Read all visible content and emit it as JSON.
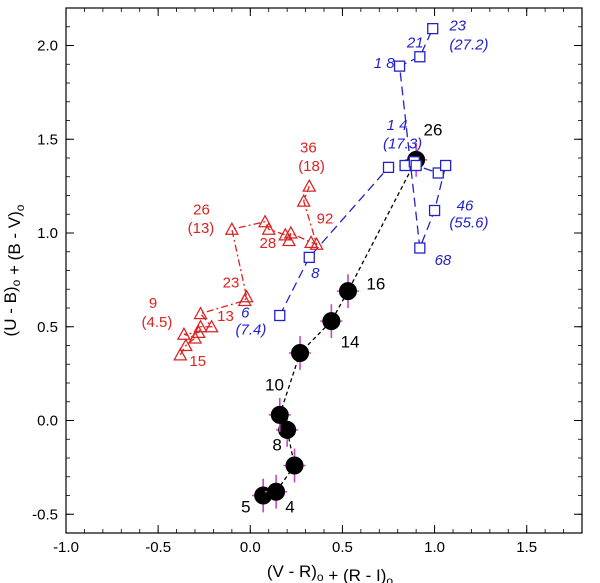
{
  "chart_data": {
    "type": "scatter",
    "xlabel": "(V - R)o + (R - I)o",
    "ylabel": "(U - B)o + (B - V)o",
    "xlim": [
      -1.0,
      1.8
    ],
    "ylim": [
      -0.6,
      2.2
    ],
    "xticks": [
      -1.0,
      -0.5,
      0.0,
      0.5,
      1.0,
      1.5
    ],
    "xtick_labels": [
      "-1.0",
      "-0.5",
      "0.0",
      "0.5",
      "1.0",
      "1.5"
    ],
    "yticks": [
      -0.5,
      0.0,
      0.5,
      1.0,
      1.5,
      2.0
    ],
    "ytick_labels": [
      "-0.5",
      "0.0",
      "0.5",
      "1.0",
      "1.5",
      "2.0"
    ],
    "grid": false,
    "series": [
      {
        "name": "black-circles",
        "marker": "filled-circle",
        "color": "#000000",
        "errorbar_color": "#cc44cc",
        "line": "dashed",
        "points": [
          {
            "x": 0.07,
            "y": -0.4
          },
          {
            "x": 0.14,
            "y": -0.38
          },
          {
            "x": 0.24,
            "y": -0.24
          },
          {
            "x": 0.2,
            "y": -0.05
          },
          {
            "x": 0.16,
            "y": 0.03
          },
          {
            "x": 0.27,
            "y": 0.36
          },
          {
            "x": 0.44,
            "y": 0.53
          },
          {
            "x": 0.53,
            "y": 0.69
          },
          {
            "x": 0.9,
            "y": 1.39
          }
        ],
        "labels": [
          {
            "text": "5",
            "x": -0.05,
            "y": -0.49
          },
          {
            "text": "4",
            "x": 0.19,
            "y": -0.49
          },
          {
            "text": "8",
            "x": 0.12,
            "y": -0.16
          },
          {
            "text": "10",
            "x": 0.08,
            "y": 0.16
          },
          {
            "text": "14",
            "x": 0.49,
            "y": 0.39
          },
          {
            "text": "16",
            "x": 0.63,
            "y": 0.7
          },
          {
            "text": "26",
            "x": 0.94,
            "y": 1.52
          }
        ]
      },
      {
        "name": "blue-squares",
        "marker": "open-square",
        "color": "#2222cc",
        "line": "long-dash",
        "points": [
          {
            "x": 0.16,
            "y": 0.56
          },
          {
            "x": 0.32,
            "y": 0.87
          },
          {
            "x": 0.75,
            "y": 1.35
          },
          {
            "x": 0.84,
            "y": 1.36
          },
          {
            "x": 0.89,
            "y": 1.38
          },
          {
            "x": 0.9,
            "y": 1.36
          },
          {
            "x": 1.02,
            "y": 1.32
          },
          {
            "x": 1.06,
            "y": 1.36
          },
          {
            "x": 1.0,
            "y": 1.12
          },
          {
            "x": 0.92,
            "y": 0.92
          },
          {
            "x": 0.81,
            "y": 1.89
          },
          {
            "x": 0.92,
            "y": 1.94
          },
          {
            "x": 0.99,
            "y": 2.09
          }
        ],
        "labels": [
          {
            "text": "6",
            "x": -0.05,
            "y": 0.55
          },
          {
            "text": "(7.4)",
            "x": -0.08,
            "y": 0.46
          },
          {
            "text": "8",
            "x": 0.33,
            "y": 0.76
          },
          {
            "text": "1 4",
            "x": 0.74,
            "y": 1.55
          },
          {
            "text": "(17.3)",
            "x": 0.72,
            "y": 1.45
          },
          {
            "text": "1 8",
            "x": 0.67,
            "y": 1.88
          },
          {
            "text": "21",
            "x": 0.85,
            "y": 1.99
          },
          {
            "text": "23",
            "x": 1.08,
            "y": 2.08
          },
          {
            "text": "(27.2)",
            "x": 1.08,
            "y": 1.98
          },
          {
            "text": "46",
            "x": 1.12,
            "y": 1.12
          },
          {
            "text": "(55.6)",
            "x": 1.08,
            "y": 1.03
          },
          {
            "text": "68",
            "x": 1.0,
            "y": 0.83
          }
        ]
      },
      {
        "name": "red-triangles",
        "marker": "open-triangle",
        "color": "#dd2222",
        "line": "dash-dot",
        "points": [
          {
            "x": -0.38,
            "y": 0.35
          },
          {
            "x": -0.35,
            "y": 0.4
          },
          {
            "x": -0.3,
            "y": 0.44
          },
          {
            "x": -0.36,
            "y": 0.46
          },
          {
            "x": -0.28,
            "y": 0.47
          },
          {
            "x": -0.27,
            "y": 0.5
          },
          {
            "x": -0.21,
            "y": 0.5
          },
          {
            "x": -0.27,
            "y": 0.57
          },
          {
            "x": -0.03,
            "y": 0.64
          },
          {
            "x": -0.02,
            "y": 0.66
          },
          {
            "x": -0.1,
            "y": 1.02
          },
          {
            "x": 0.08,
            "y": 1.06
          },
          {
            "x": 0.1,
            "y": 1.02
          },
          {
            "x": 0.19,
            "y": 0.99
          },
          {
            "x": 0.21,
            "y": 0.96
          },
          {
            "x": 0.22,
            "y": 1.0
          },
          {
            "x": 0.33,
            "y": 0.95
          },
          {
            "x": 0.36,
            "y": 0.94
          },
          {
            "x": 0.29,
            "y": 1.17
          },
          {
            "x": 0.32,
            "y": 1.25
          }
        ],
        "labels": [
          {
            "text": "9",
            "x": -0.55,
            "y": 0.6
          },
          {
            "text": "(4.5)",
            "x": -0.59,
            "y": 0.5
          },
          {
            "text": "13",
            "x": -0.18,
            "y": 0.53
          },
          {
            "text": "15",
            "x": -0.33,
            "y": 0.29
          },
          {
            "text": "23",
            "x": -0.15,
            "y": 0.71
          },
          {
            "text": "26",
            "x": -0.31,
            "y": 1.1
          },
          {
            "text": "(13)",
            "x": -0.34,
            "y": 1.0
          },
          {
            "text": "28",
            "x": 0.05,
            "y": 0.92
          },
          {
            "text": "92",
            "x": 0.36,
            "y": 1.05
          },
          {
            "text": "36",
            "x": 0.27,
            "y": 1.43
          },
          {
            "text": "(18)",
            "x": 0.26,
            "y": 1.33
          }
        ]
      }
    ]
  }
}
